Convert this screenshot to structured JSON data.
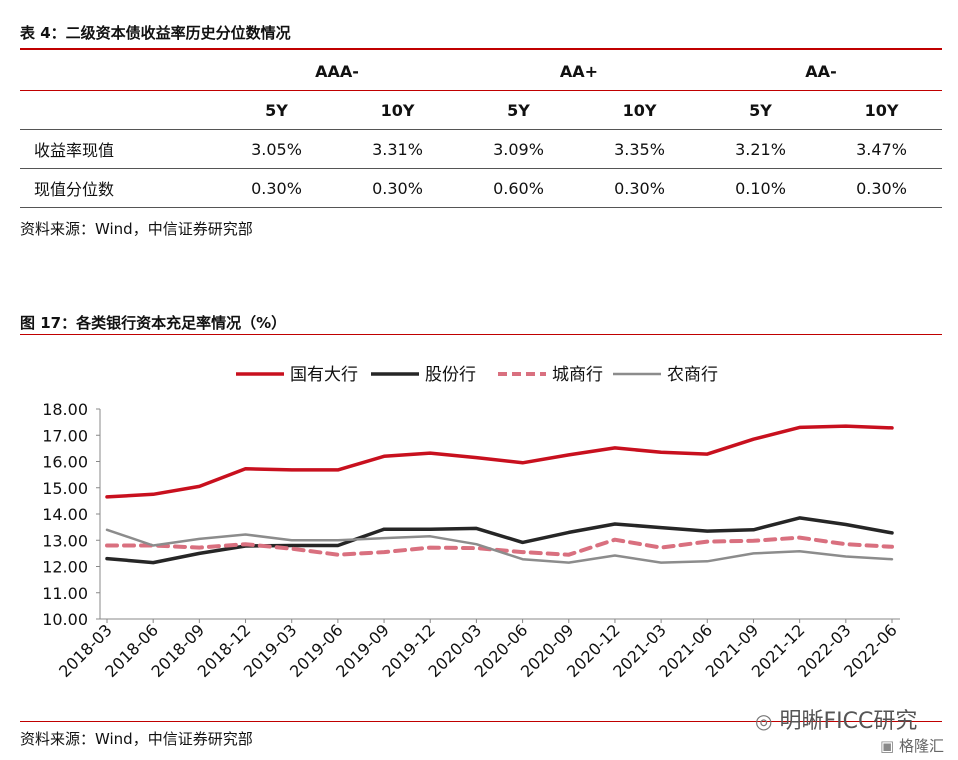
{
  "table": {
    "title": "表 4：二级资本债收益率历史分位数情况",
    "groups": [
      "AAA-",
      "AA+",
      "AA-"
    ],
    "terms": [
      "5Y",
      "10Y",
      "5Y",
      "10Y",
      "5Y",
      "10Y"
    ],
    "rows": [
      {
        "label": "收益率现值",
        "values": [
          "3.05%",
          "3.31%",
          "3.09%",
          "3.35%",
          "3.21%",
          "3.47%"
        ]
      },
      {
        "label": "现值分位数",
        "values": [
          "0.30%",
          "0.30%",
          "0.60%",
          "0.30%",
          "0.10%",
          "0.30%"
        ]
      }
    ],
    "source": "资料来源：Wind，中信证券研究部"
  },
  "figure": {
    "title": "图 17：各类银行资本充足率情况（%）",
    "source": "资料来源：Wind，中信证券研究部"
  },
  "watermark": {
    "text": "明晰FICC研究",
    "text2": "格隆汇"
  },
  "chart_data": {
    "type": "line",
    "categories": [
      "2018-03",
      "2018-06",
      "2018-09",
      "2018-12",
      "2019-03",
      "2019-06",
      "2019-09",
      "2019-12",
      "2020-03",
      "2020-06",
      "2020-09",
      "2020-12",
      "2021-03",
      "2021-06",
      "2021-09",
      "2021-12",
      "2022-03",
      "2022-06"
    ],
    "ylim": [
      10.0,
      18.0
    ],
    "yticks": [
      "10.00",
      "11.00",
      "12.00",
      "13.00",
      "14.00",
      "15.00",
      "16.00",
      "17.00",
      "18.00"
    ],
    "legend_position": "top",
    "series": [
      {
        "name": "国有大行",
        "color": "#c8101e",
        "style": "solid-thick",
        "values": [
          14.65,
          14.75,
          15.05,
          15.72,
          15.68,
          15.68,
          16.2,
          16.32,
          16.15,
          15.95,
          16.25,
          16.52,
          16.35,
          16.28,
          16.85,
          17.3,
          17.35,
          17.28
        ]
      },
      {
        "name": "股份行",
        "color": "#262626",
        "style": "solid-thick",
        "values": [
          12.3,
          12.15,
          12.5,
          12.78,
          12.8,
          12.8,
          13.42,
          13.42,
          13.45,
          12.92,
          13.3,
          13.62,
          13.48,
          13.35,
          13.4,
          13.85,
          13.6,
          13.28
        ]
      },
      {
        "name": "城商行",
        "color": "#d9707f",
        "style": "dashed",
        "values": [
          12.8,
          12.8,
          12.72,
          12.85,
          12.68,
          12.45,
          12.55,
          12.72,
          12.7,
          12.55,
          12.45,
          13.02,
          12.72,
          12.95,
          12.98,
          13.1,
          12.85,
          12.75
        ]
      },
      {
        "name": "农商行",
        "color": "#8c8c8c",
        "style": "solid-thin",
        "values": [
          13.4,
          12.8,
          13.05,
          13.22,
          13.0,
          13.0,
          13.08,
          13.15,
          12.85,
          12.28,
          12.15,
          12.42,
          12.15,
          12.2,
          12.5,
          12.58,
          12.38,
          12.28
        ]
      }
    ]
  }
}
